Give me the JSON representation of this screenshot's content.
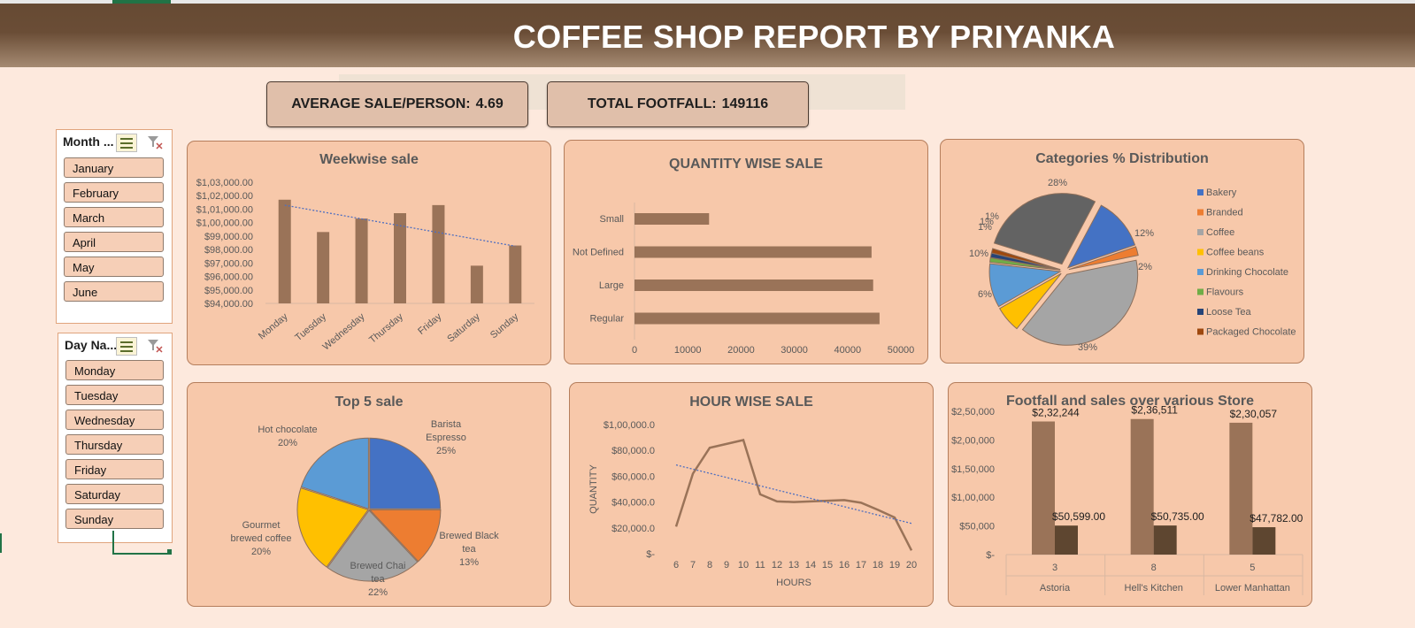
{
  "title": "COFFEE SHOP REPORT BY PRIYANKA",
  "kpis": {
    "avg_label": "AVERAGE SALE/PERSON:",
    "avg_value": "4.69",
    "footfall_label": "TOTAL FOOTFALL:",
    "footfall_value": "149116"
  },
  "slicers": {
    "month": {
      "header": "Month ...",
      "items": [
        "January",
        "February",
        "March",
        "April",
        "May",
        "June"
      ]
    },
    "day": {
      "header": "Day Na...",
      "items": [
        "Monday",
        "Tuesday",
        "Wednesday",
        "Thursday",
        "Friday",
        "Saturday",
        "Sunday"
      ]
    }
  },
  "icons": {
    "multiselect": "multi-select-icon",
    "clear_filter": "clear-filter-icon"
  },
  "colors": {
    "banner": "#664a33",
    "bar": "#9a7358",
    "dark_bar": "#5e4630",
    "panel": "#f7c8aa",
    "background": "#fde9dd",
    "trend": "#4f6fc0"
  },
  "chart_data": [
    {
      "id": "weekwise",
      "type": "bar",
      "title": "Weekwise sale",
      "categories": [
        "Monday",
        "Tuesday",
        "Wednesday",
        "Thursday",
        "Friday",
        "Saturday",
        "Sunday"
      ],
      "values": [
        101700,
        99300,
        100300,
        100700,
        101300,
        96800,
        98300
      ],
      "ylim": [
        94000,
        103000
      ],
      "yticks": [
        "$1,03,000.00",
        "$1,02,000.00",
        "$1,01,000.00",
        "$1,00,000.00",
        "$99,000.00",
        "$98,000.00",
        "$97,000.00",
        "$96,000.00",
        "$95,000.00",
        "$94,000.00"
      ],
      "trendline": true
    },
    {
      "id": "quantity",
      "type": "bar",
      "orientation": "horizontal",
      "title": "QUANTITY WISE SALE",
      "categories": [
        "Small",
        "Not Defined",
        "Large",
        "Regular"
      ],
      "values": [
        14000,
        44500,
        44800,
        46000
      ],
      "xlim": [
        0,
        50000
      ],
      "xticks": [
        "0",
        "10000",
        "20000",
        "30000",
        "40000",
        "50000"
      ]
    },
    {
      "id": "categories",
      "type": "pie",
      "title": "Categories % Distribution",
      "slices": [
        {
          "name": "Bakery",
          "value": 12,
          "label": "12%",
          "color": "#4472c4"
        },
        {
          "name": "Branded",
          "value": 2,
          "label": "2%",
          "color": "#ed7d31"
        },
        {
          "name": "Coffee",
          "value": 39,
          "label": "39%",
          "color": "#a5a5a5"
        },
        {
          "name": "Coffee beans",
          "value": 6,
          "label": "6%",
          "color": "#ffc000"
        },
        {
          "name": "Drinking Chocolate",
          "value": 10,
          "label": "10%",
          "color": "#5b9bd5"
        },
        {
          "name": "Flavours",
          "value": 1,
          "label": "1%",
          "color": "#70ad47"
        },
        {
          "name": "Loose Tea",
          "value": 1,
          "label": "1%",
          "color": "#264478"
        },
        {
          "name": "Packaged Chocolate",
          "value": 1,
          "label": "1%",
          "color": "#9e480e"
        },
        {
          "name": "",
          "value": 28,
          "label": "28%",
          "color": "#636363"
        }
      ],
      "legend": [
        "Bakery",
        "Branded",
        "Coffee",
        "Coffee beans",
        "Drinking Chocolate",
        "Flavours",
        "Loose Tea",
        "Packaged Chocolate"
      ],
      "legend_position": "right"
    },
    {
      "id": "top5",
      "type": "pie",
      "title": "Top 5 sale",
      "slices": [
        {
          "name": "Barista Espresso",
          "value": 25,
          "label": "25%",
          "color": "#4472c4"
        },
        {
          "name": "Brewed Black tea",
          "value": 13,
          "label": "13%",
          "color": "#ed7d31"
        },
        {
          "name": "Brewed Chai tea",
          "value": 22,
          "label": "22%",
          "color": "#a5a5a5"
        },
        {
          "name": "Gourmet brewed coffee",
          "value": 20,
          "label": "20%",
          "color": "#ffc000"
        },
        {
          "name": "Hot chocolate",
          "value": 20,
          "label": "20%",
          "color": "#5b9bd5"
        }
      ]
    },
    {
      "id": "hourwise",
      "type": "line",
      "title": "HOUR WISE SALE",
      "xlabel": "HOURS",
      "ylabel": "QUANTITY",
      "x": [
        6,
        7,
        8,
        9,
        10,
        11,
        12,
        13,
        14,
        15,
        16,
        17,
        18,
        19,
        20
      ],
      "values": [
        21000,
        62000,
        82000,
        85000,
        88000,
        46000,
        40500,
        40000,
        40500,
        41000,
        41500,
        39500,
        34000,
        28000,
        2500
      ],
      "ylim": [
        0,
        100000
      ],
      "yticks": [
        "$1,00,000.0",
        "$80,000.0",
        "$60,000.0",
        "$40,000.0",
        "$20,000.0",
        "$-"
      ],
      "trendline": true
    },
    {
      "id": "stores",
      "type": "bar",
      "title": "Footfall and sales over various Store",
      "categories": [
        "Astoria",
        "Hell's Kitchen",
        "Lower Manhattan"
      ],
      "store_ids": [
        "3",
        "8",
        "5"
      ],
      "series": [
        {
          "values": [
            232244,
            236511,
            230057
          ],
          "labels": [
            "$2,32,244",
            "$2,36,511",
            "$2,30,057"
          ]
        },
        {
          "values": [
            50599,
            50735,
            47782
          ],
          "labels": [
            "$50,599.00",
            "$50,735.00",
            "$47,782.00"
          ]
        }
      ],
      "ylim": [
        0,
        250000
      ],
      "yticks": [
        "$2,50,000",
        "$2,00,000",
        "$1,50,000",
        "$1,00,000",
        "$50,000",
        "$-"
      ]
    }
  ]
}
